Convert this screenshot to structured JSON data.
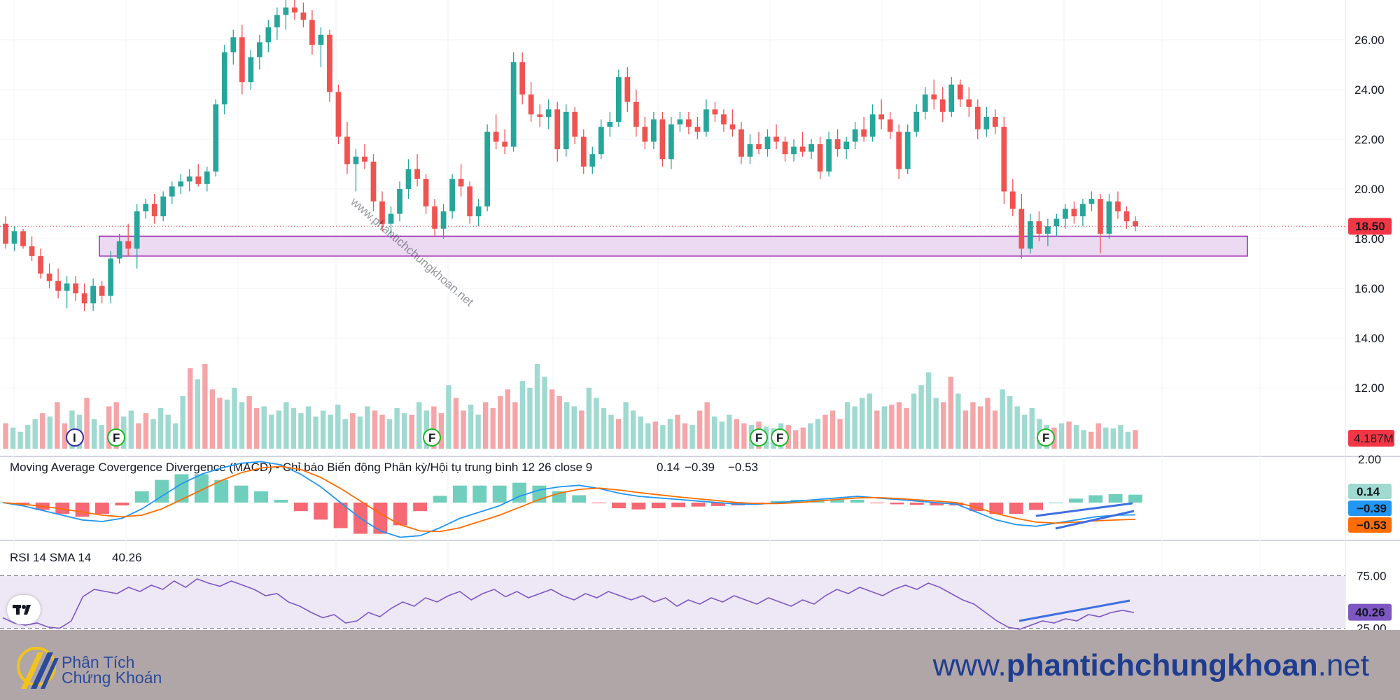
{
  "chart_data": [
    {
      "type": "candlestick",
      "title": "",
      "price_axis": {
        "ticks": [
          "26.00",
          "24.00",
          "22.00",
          "20.00",
          "18.00",
          "16.00",
          "14.00",
          "12.00"
        ],
        "range": [
          9.3,
          27.6
        ]
      },
      "last_price_label": "18.50",
      "support_zone": {
        "low": 17.3,
        "high": 18.1
      },
      "ohlc_shape": [
        [
          18.6,
          18.9,
          17.6,
          17.8
        ],
        [
          17.8,
          18.5,
          17.5,
          18.3
        ],
        [
          18.3,
          18.4,
          17.6,
          17.7
        ],
        [
          17.7,
          18.1,
          17.1,
          17.3
        ],
        [
          17.3,
          17.6,
          16.4,
          16.6
        ],
        [
          16.6,
          17.0,
          16.0,
          16.3
        ],
        [
          16.3,
          16.8,
          15.6,
          15.9
        ],
        [
          15.9,
          16.5,
          15.2,
          16.2
        ],
        [
          16.2,
          16.5,
          15.5,
          15.8
        ],
        [
          15.8,
          16.2,
          15.1,
          15.4
        ],
        [
          15.4,
          16.4,
          15.1,
          16.1
        ],
        [
          16.1,
          16.3,
          15.4,
          15.7
        ],
        [
          15.7,
          17.5,
          15.4,
          17.2
        ],
        [
          17.2,
          18.2,
          17.0,
          17.9
        ],
        [
          17.9,
          18.6,
          17.3,
          17.6
        ],
        [
          17.6,
          19.4,
          16.8,
          19.1
        ],
        [
          19.1,
          19.6,
          18.8,
          19.4
        ],
        [
          19.4,
          19.8,
          18.6,
          18.9
        ],
        [
          18.9,
          19.9,
          18.7,
          19.7
        ],
        [
          19.7,
          20.3,
          19.4,
          20.1
        ],
        [
          20.1,
          20.6,
          19.8,
          20.3
        ],
        [
          20.3,
          20.8,
          19.9,
          20.5
        ],
        [
          20.5,
          21.0,
          20.1,
          20.2
        ],
        [
          20.2,
          20.9,
          19.9,
          20.7
        ],
        [
          20.7,
          23.6,
          20.5,
          23.4
        ],
        [
          23.4,
          25.8,
          23.0,
          25.5
        ],
        [
          25.5,
          26.4,
          25.0,
          26.1
        ],
        [
          26.1,
          26.6,
          23.8,
          24.3
        ],
        [
          24.3,
          25.6,
          24.0,
          25.3
        ],
        [
          25.3,
          26.2,
          24.8,
          25.9
        ],
        [
          25.9,
          26.8,
          25.5,
          26.5
        ],
        [
          26.5,
          27.3,
          26.0,
          27.0
        ],
        [
          27.0,
          27.6,
          26.4,
          27.3
        ],
        [
          27.3,
          27.6,
          26.8,
          27.1
        ],
        [
          27.1,
          27.5,
          26.5,
          26.8
        ],
        [
          26.8,
          27.2,
          25.4,
          25.8
        ],
        [
          25.8,
          26.5,
          24.9,
          26.2
        ],
        [
          26.2,
          26.4,
          23.5,
          23.9
        ],
        [
          23.9,
          24.2,
          21.8,
          22.1
        ],
        [
          22.1,
          22.7,
          20.6,
          21.0
        ],
        [
          21.0,
          21.6,
          19.9,
          21.3
        ],
        [
          21.3,
          21.8,
          20.8,
          21.1
        ],
        [
          21.1,
          21.4,
          19.1,
          19.5
        ],
        [
          19.5,
          19.9,
          18.3,
          18.6
        ],
        [
          18.6,
          19.3,
          18.1,
          19.0
        ],
        [
          19.0,
          20.3,
          18.7,
          20.0
        ],
        [
          20.0,
          21.2,
          19.6,
          20.8
        ],
        [
          20.8,
          21.4,
          20.1,
          20.4
        ],
        [
          20.4,
          20.6,
          19.0,
          19.3
        ],
        [
          19.3,
          19.6,
          18.1,
          18.4
        ],
        [
          18.4,
          19.4,
          18.0,
          19.1
        ],
        [
          19.1,
          20.6,
          18.8,
          20.4
        ],
        [
          20.4,
          21.0,
          19.7,
          20.1
        ],
        [
          20.1,
          20.3,
          18.6,
          18.9
        ],
        [
          18.9,
          19.6,
          18.5,
          19.3
        ],
        [
          19.3,
          22.6,
          19.1,
          22.3
        ],
        [
          22.3,
          23.0,
          21.6,
          21.9
        ],
        [
          21.9,
          22.4,
          21.4,
          21.7
        ],
        [
          21.7,
          25.5,
          21.5,
          25.1
        ],
        [
          25.1,
          25.5,
          23.4,
          23.8
        ],
        [
          23.8,
          24.3,
          22.7,
          23.0
        ],
        [
          23.0,
          23.4,
          22.5,
          22.9
        ],
        [
          22.9,
          23.6,
          22.4,
          23.2
        ],
        [
          23.2,
          23.5,
          21.1,
          21.6
        ],
        [
          21.6,
          23.4,
          21.3,
          23.1
        ],
        [
          23.1,
          23.3,
          21.8,
          22.1
        ],
        [
          22.1,
          22.4,
          20.6,
          20.9
        ],
        [
          20.9,
          21.7,
          20.6,
          21.4
        ],
        [
          21.4,
          22.8,
          21.2,
          22.5
        ],
        [
          22.5,
          23.1,
          22.1,
          22.7
        ],
        [
          22.7,
          24.8,
          22.5,
          24.5
        ],
        [
          24.5,
          24.9,
          23.1,
          23.5
        ],
        [
          23.5,
          24.0,
          22.1,
          22.5
        ],
        [
          22.5,
          22.9,
          21.6,
          21.9
        ],
        [
          21.9,
          23.1,
          21.6,
          22.8
        ],
        [
          22.8,
          23.1,
          20.9,
          21.2
        ],
        [
          21.2,
          22.9,
          20.8,
          22.6
        ],
        [
          22.6,
          23.1,
          22.3,
          22.8
        ],
        [
          22.8,
          23.1,
          22.2,
          22.5
        ],
        [
          22.5,
          22.9,
          22.0,
          22.3
        ],
        [
          22.3,
          23.6,
          22.1,
          23.2
        ],
        [
          23.2,
          23.5,
          22.7,
          23.0
        ],
        [
          23.0,
          23.2,
          22.3,
          22.6
        ],
        [
          22.6,
          23.2,
          22.1,
          22.4
        ],
        [
          22.4,
          22.7,
          21.0,
          21.3
        ],
        [
          21.3,
          22.2,
          21.0,
          21.8
        ],
        [
          21.8,
          22.3,
          21.4,
          21.6
        ],
        [
          21.6,
          22.4,
          21.3,
          22.1
        ],
        [
          22.1,
          22.6,
          21.6,
          21.9
        ],
        [
          21.9,
          22.1,
          21.1,
          21.4
        ],
        [
          21.4,
          22.0,
          21.1,
          21.7
        ],
        [
          21.7,
          22.3,
          21.3,
          21.5
        ],
        [
          21.5,
          22.0,
          21.2,
          21.8
        ],
        [
          21.8,
          22.1,
          20.4,
          20.7
        ],
        [
          20.7,
          22.3,
          20.5,
          22.0
        ],
        [
          22.0,
          22.4,
          21.3,
          21.6
        ],
        [
          21.6,
          22.1,
          21.2,
          21.9
        ],
        [
          21.9,
          22.7,
          21.6,
          22.4
        ],
        [
          22.4,
          22.9,
          21.9,
          22.1
        ],
        [
          22.1,
          23.4,
          21.9,
          23.0
        ],
        [
          23.0,
          23.6,
          22.4,
          22.8
        ],
        [
          22.8,
          23.1,
          22.0,
          22.3
        ],
        [
          22.3,
          22.6,
          20.4,
          20.8
        ],
        [
          20.8,
          22.6,
          20.6,
          22.3
        ],
        [
          22.3,
          23.4,
          22.1,
          23.1
        ],
        [
          23.1,
          24.1,
          22.8,
          23.8
        ],
        [
          23.8,
          24.4,
          23.2,
          23.6
        ],
        [
          23.6,
          24.1,
          22.7,
          23.1
        ],
        [
          23.1,
          24.5,
          22.9,
          24.2
        ],
        [
          24.2,
          24.4,
          23.3,
          23.6
        ],
        [
          23.6,
          24.1,
          22.9,
          23.3
        ],
        [
          23.3,
          23.6,
          22.0,
          22.4
        ],
        [
          22.4,
          23.3,
          22.1,
          22.9
        ],
        [
          22.9,
          23.2,
          22.2,
          22.5
        ],
        [
          22.5,
          22.9,
          19.4,
          19.9
        ],
        [
          19.9,
          20.4,
          18.9,
          19.2
        ],
        [
          19.2,
          19.8,
          17.2,
          17.6
        ],
        [
          17.6,
          19.0,
          17.4,
          18.7
        ],
        [
          18.7,
          19.1,
          17.9,
          18.2
        ],
        [
          18.2,
          18.8,
          17.7,
          18.5
        ],
        [
          18.5,
          19.0,
          18.1,
          18.8
        ],
        [
          18.8,
          19.4,
          18.4,
          19.2
        ],
        [
          19.2,
          19.5,
          18.6,
          18.9
        ],
        [
          18.9,
          19.6,
          18.5,
          19.4
        ],
        [
          19.4,
          19.9,
          19.1,
          19.6
        ],
        [
          19.6,
          19.8,
          17.4,
          18.2
        ],
        [
          18.2,
          19.8,
          18.0,
          19.5
        ],
        [
          19.5,
          19.9,
          18.8,
          19.1
        ],
        [
          19.1,
          19.3,
          18.4,
          18.7
        ],
        [
          18.7,
          18.9,
          18.3,
          18.5
        ]
      ],
      "event_markers": [
        {
          "label": "I"
        },
        {
          "label": "F"
        },
        {
          "label": "F"
        },
        {
          "label": "F"
        },
        {
          "label": "F"
        },
        {
          "label": "F"
        }
      ],
      "volume_label": "4.187M",
      "volume_shape": [
        0.3,
        0.25,
        0.2,
        0.28,
        0.35,
        0.42,
        0.38,
        0.55,
        0.3,
        0.45,
        0.4,
        0.6,
        0.35,
        0.28,
        0.5,
        0.55,
        0.38,
        0.45,
        0.3,
        0.42,
        0.35,
        0.48,
        0.4,
        0.3,
        0.62,
        0.95,
        0.82,
        1.0,
        0.7,
        0.6,
        0.58,
        0.72,
        0.55,
        0.62,
        0.48,
        0.5,
        0.4,
        0.45,
        0.55,
        0.48,
        0.42,
        0.5,
        0.38,
        0.45,
        0.4,
        0.52,
        0.35,
        0.42,
        0.38,
        0.5,
        0.45,
        0.4,
        0.35,
        0.48,
        0.42,
        0.4,
        0.55,
        0.45,
        0.5,
        0.42,
        0.75,
        0.6,
        0.45,
        0.52,
        0.4,
        0.55,
        0.48,
        0.62,
        0.7,
        0.55,
        0.8,
        0.72,
        1.0,
        0.85,
        0.7,
        0.62,
        0.55,
        0.5,
        0.45,
        0.72,
        0.6,
        0.48,
        0.4,
        0.35,
        0.55,
        0.45,
        0.38,
        0.3,
        0.32,
        0.28,
        0.35,
        0.4,
        0.3,
        0.28,
        0.45,
        0.55,
        0.38,
        0.32,
        0.4,
        0.35,
        0.3,
        0.28,
        0.32,
        0.26,
        0.24,
        0.3,
        0.28,
        0.22,
        0.25,
        0.3,
        0.35,
        0.4,
        0.45,
        0.35,
        0.55,
        0.5,
        0.6,
        0.65,
        0.45,
        0.5,
        0.52,
        0.55,
        0.48,
        0.65,
        0.75,
        0.9,
        0.6,
        0.55,
        0.85,
        0.65,
        0.45,
        0.55,
        0.5,
        0.6,
        0.45,
        0.7,
        0.62,
        0.5,
        0.4,
        0.48,
        0.35,
        0.28,
        0.25,
        0.3,
        0.32,
        0.28,
        0.22,
        0.2,
        0.3,
        0.25,
        0.24,
        0.28,
        0.2,
        0.22
      ]
    },
    {
      "type": "line",
      "title": "Moving Average Covergence Divergence (MACD) - Chỉ báo Biến động Phân kỳ/Hội tụ trung bình 12 26 close 9",
      "legend_values": [
        "0.14",
        "−0.39",
        "−0.53"
      ],
      "axis_ticks": [
        "2.00"
      ],
      "labels": {
        "histogram": "0.14",
        "macd": "−0.39",
        "signal": "−0.53"
      },
      "colors": {
        "histogram": "#9fd9cf",
        "macd": "#2196f3",
        "signal": "#ff6d00"
      },
      "series": [
        {
          "values": [
            0.0,
            -0.1,
            -0.25,
            -0.4,
            -0.55,
            -0.6,
            -0.5,
            -0.2,
            0.2,
            0.6,
            0.9,
            1.1,
            1.25,
            1.3,
            1.2,
            0.9,
            0.5,
            0.0,
            -0.5,
            -0.9,
            -1.1,
            -1.05,
            -0.8,
            -0.5,
            -0.3,
            -0.1,
            0.2,
            0.4,
            0.5,
            0.55,
            0.45,
            0.3,
            0.2,
            0.15,
            0.1,
            0.05,
            0.0,
            -0.05,
            -0.05,
            0.0,
            0.05,
            0.1,
            0.15,
            0.2,
            0.15,
            0.1,
            0.05,
            0.0,
            -0.05,
            -0.3,
            -0.55,
            -0.7,
            -0.75,
            -0.65,
            -0.55,
            -0.45,
            -0.4,
            -0.39
          ]
        },
        {
          "values": [
            0.0,
            -0.05,
            -0.12,
            -0.2,
            -0.3,
            -0.4,
            -0.45,
            -0.4,
            -0.2,
            0.1,
            0.4,
            0.7,
            0.95,
            1.1,
            1.15,
            1.05,
            0.8,
            0.45,
            0.05,
            -0.35,
            -0.7,
            -0.9,
            -0.92,
            -0.8,
            -0.6,
            -0.4,
            -0.15,
            0.1,
            0.3,
            0.42,
            0.46,
            0.4,
            0.32,
            0.25,
            0.18,
            0.12,
            0.06,
            0.0,
            -0.03,
            -0.03,
            0.0,
            0.05,
            0.1,
            0.15,
            0.16,
            0.13,
            0.09,
            0.05,
            0.0,
            -0.15,
            -0.35,
            -0.5,
            -0.62,
            -0.65,
            -0.62,
            -0.58,
            -0.55,
            -0.53
          ]
        }
      ]
    },
    {
      "type": "line",
      "title": "RSI 14 SMA 14",
      "legend_value": "40.26",
      "last_value_label": "40.26",
      "axis_ticks": [
        "75.00",
        "25.00"
      ],
      "band": [
        25,
        75
      ],
      "series": [
        {
          "values": [
            35,
            30,
            28,
            30,
            26,
            25,
            32,
            55,
            62,
            60,
            58,
            64,
            60,
            66,
            62,
            70,
            64,
            72,
            68,
            65,
            70,
            66,
            62,
            56,
            58,
            50,
            46,
            40,
            35,
            38,
            30,
            32,
            40,
            36,
            44,
            50,
            46,
            54,
            50,
            56,
            60,
            52,
            58,
            62,
            55,
            60,
            54,
            58,
            62,
            56,
            52,
            58,
            54,
            60,
            56,
            52,
            56,
            50,
            54,
            46,
            52,
            48,
            54,
            50,
            56,
            52,
            48,
            54,
            50,
            46,
            52,
            48,
            56,
            62,
            58,
            64,
            60,
            56,
            62,
            66,
            62,
            68,
            64,
            58,
            52,
            48,
            40,
            32,
            26,
            24,
            28,
            32,
            30,
            34,
            32,
            38,
            36,
            40,
            42,
            40
          ]
        }
      ]
    }
  ],
  "footer": {
    "brand_line1": "Phân Tích",
    "brand_line2": "Chứng Khoán",
    "site_prefix": "www.",
    "site_bold": "phantichchungkhoan",
    "site_suffix": ".net"
  },
  "watermark": "www.phantichchungkhoan.net",
  "colors": {
    "up": "#26a69a",
    "down": "#ef5350",
    "vol_up": "#9fd9cf",
    "vol_down": "#f5a5a8",
    "zone_fill": "#e8d3f0",
    "zone_stroke": "#9c27b0",
    "rsi_line": "#7e57c2",
    "rsi_band": "#ede7f6",
    "trendline": "#3f6fe0",
    "price_label": "#f23645"
  }
}
